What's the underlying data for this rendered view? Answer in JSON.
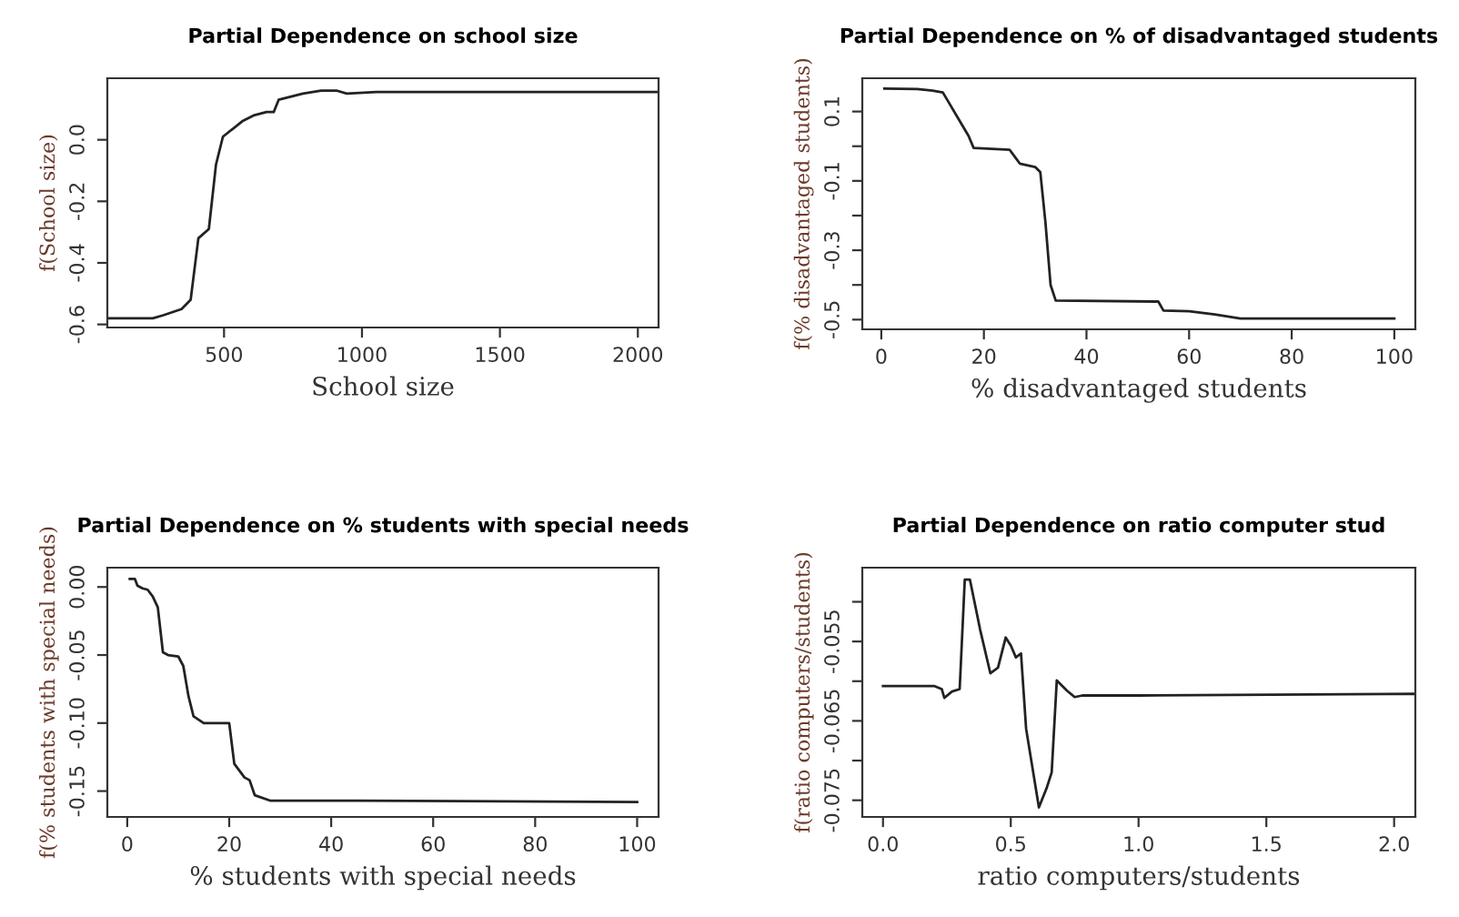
{
  "chart_data": [
    {
      "type": "line",
      "title": "Partial Dependence on school size",
      "xlabel": "School size",
      "ylabel": "f(School size)",
      "xlim": [
        77,
        2075
      ],
      "ylim": [
        -0.61,
        0.2
      ],
      "xticks": [
        500,
        1000,
        1500,
        2000
      ],
      "yticks": [
        -0.6,
        -0.4,
        -0.2,
        {
          "value": 0.0,
          "label": "0.0"
        }
      ],
      "grid": false,
      "legend": false,
      "marker": "none",
      "line_style": "solid",
      "series": [
        {
          "color": "#222222",
          "x": [
            80,
            242,
            280,
            346,
            379,
            407,
            445,
            471,
            496,
            566,
            610,
            654,
            680,
            698,
            786,
            852,
            907,
            945,
            1051,
            2075
          ],
          "values": [
            -0.58,
            -0.58,
            -0.57,
            -0.55,
            -0.52,
            -0.32,
            -0.29,
            -0.08,
            0.01,
            0.06,
            0.08,
            0.09,
            0.09,
            0.13,
            0.15,
            0.16,
            0.16,
            0.15,
            0.155,
            0.155
          ]
        }
      ]
    },
    {
      "type": "line",
      "title": "Partial Dependence on % of disadvantaged students",
      "xlabel": "% disadvantaged students",
      "ylabel": "f(% disadvantaged students)",
      "xlim": [
        -3.7,
        104.1
      ],
      "ylim": [
        -0.528,
        0.196
      ],
      "xticks": [
        0,
        20,
        40,
        60,
        80,
        100
      ],
      "yticks": [
        0.1,
        {
          "value": 0.0,
          "label": null
        },
        -0.1,
        {
          "value": -0.2,
          "label": null
        },
        -0.3,
        {
          "value": -0.4,
          "label": null
        },
        -0.5
      ],
      "grid": false,
      "legend": false,
      "marker": "none",
      "line_style": "solid",
      "series": [
        {
          "color": "#222222",
          "x": [
            0.6,
            7,
            10,
            12,
            13,
            15,
            17,
            18,
            25,
            26,
            27,
            30,
            31,
            32,
            33,
            34,
            54,
            55,
            60,
            65,
            70,
            100
          ],
          "values": [
            0.166,
            0.165,
            0.16,
            0.155,
            0.13,
            0.08,
            0.03,
            -0.005,
            -0.01,
            -0.03,
            -0.05,
            -0.06,
            -0.075,
            -0.22,
            -0.4,
            -0.445,
            -0.448,
            -0.474,
            -0.476,
            -0.485,
            -0.497,
            -0.497
          ]
        }
      ]
    },
    {
      "type": "line",
      "title": "Partial Dependence on % students with special needs",
      "xlabel": "% students with special needs",
      "ylabel": "f(% students with special needs)",
      "xlim": [
        -3.9,
        104.2
      ],
      "ylim": [
        -0.169,
        0.0142
      ],
      "xticks": [
        0,
        20,
        40,
        60,
        80,
        100
      ],
      "yticks": [
        {
          "value": 0.0,
          "label": "0.00"
        },
        -0.05,
        {
          "value": -0.1,
          "label": "-0.10"
        },
        -0.15
      ],
      "grid": false,
      "legend": false,
      "marker": "none",
      "line_style": "solid",
      "series": [
        {
          "color": "#222222",
          "x": [
            0.5,
            1.5,
            2,
            3,
            4,
            5,
            6,
            7,
            8,
            10,
            11,
            12,
            13,
            15,
            20,
            21,
            23,
            24,
            25,
            28,
            45,
            100
          ],
          "values": [
            0.006,
            0.006,
            0.001,
            -0.001,
            -0.002,
            -0.007,
            -0.015,
            -0.048,
            -0.05,
            -0.051,
            -0.058,
            -0.08,
            -0.095,
            -0.1,
            -0.1,
            -0.13,
            -0.14,
            -0.142,
            -0.153,
            -0.157,
            -0.157,
            -0.158
          ]
        }
      ]
    },
    {
      "type": "line",
      "title": "Partial Dependence on ratio computer stud",
      "xlabel": "ratio computers/students",
      "ylabel": "f(ratio computers/students)",
      "xlim": [
        -0.081,
        2.083
      ],
      "ylim": [
        -0.0771,
        -0.0457
      ],
      "xticks": [
        {
          "value": 0,
          "label": "0.0"
        },
        0.5,
        {
          "value": 1,
          "label": "1.0"
        },
        1.5,
        {
          "value": 2,
          "label": "2.0"
        }
      ],
      "yticks": [
        {
          "value": -0.05,
          "label": null
        },
        -0.055,
        {
          "value": -0.06,
          "label": null
        },
        -0.065,
        {
          "value": -0.07,
          "label": null
        },
        -0.075
      ],
      "grid": false,
      "legend": false,
      "marker": "none",
      "line_style": "solid",
      "series": [
        {
          "color": "#222222",
          "x": [
            0,
            0.2,
            0.23,
            0.24,
            0.27,
            0.3,
            0.32,
            0.34,
            0.38,
            0.42,
            0.45,
            0.48,
            0.5,
            0.52,
            0.54,
            0.56,
            0.61,
            0.64,
            0.66,
            0.68,
            0.72,
            0.75,
            0.78,
            1.0,
            2.08
          ],
          "values": [
            -0.0606,
            -0.0606,
            -0.061,
            -0.0621,
            -0.0613,
            -0.061,
            -0.0472,
            -0.0472,
            -0.0535,
            -0.059,
            -0.0583,
            -0.0545,
            -0.0555,
            -0.057,
            -0.0565,
            -0.066,
            -0.0759,
            -0.0735,
            -0.0715,
            -0.0599,
            -0.0612,
            -0.062,
            -0.0618,
            -0.0618,
            -0.0616
          ]
        }
      ]
    }
  ]
}
